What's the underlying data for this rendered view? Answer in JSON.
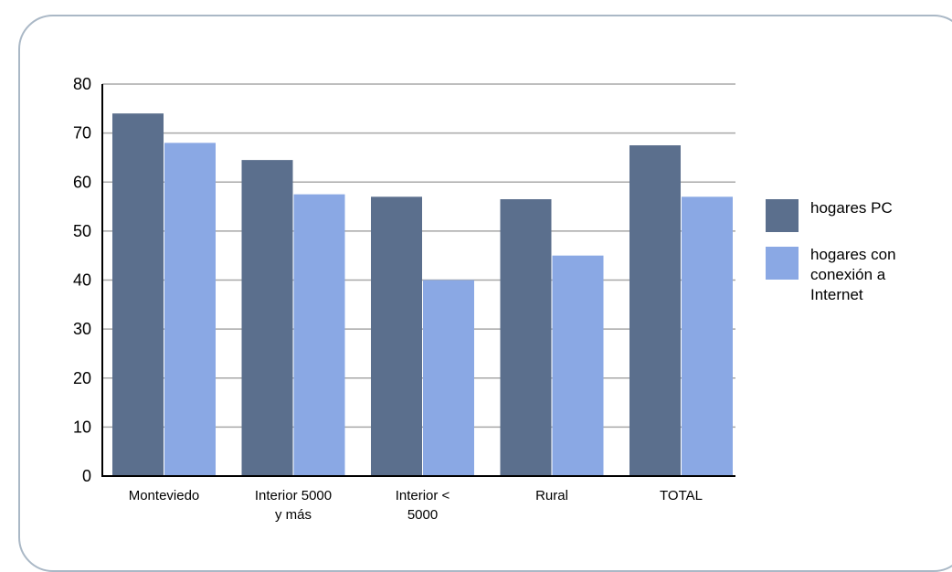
{
  "chart_data": {
    "type": "bar",
    "categories": [
      [
        "Monteviedo"
      ],
      [
        "Interior 5000",
        "y más"
      ],
      [
        "Interior <",
        "5000"
      ],
      [
        "Rural"
      ],
      [
        "TOTAL"
      ]
    ],
    "series": [
      {
        "name": [
          "hogares PC"
        ],
        "color": "#5b6f8d",
        "values": [
          74,
          64.5,
          57,
          56.5,
          67.5
        ]
      },
      {
        "name": [
          "hogares con",
          "conexión a",
          "Internet"
        ],
        "color": "#8aa8e4",
        "values": [
          68,
          57.5,
          40,
          45,
          57
        ]
      }
    ],
    "ylim": [
      0,
      80
    ],
    "yticks": [
      0,
      10,
      20,
      30,
      40,
      50,
      60,
      70,
      80
    ],
    "grid": true,
    "legend_position": "right"
  }
}
